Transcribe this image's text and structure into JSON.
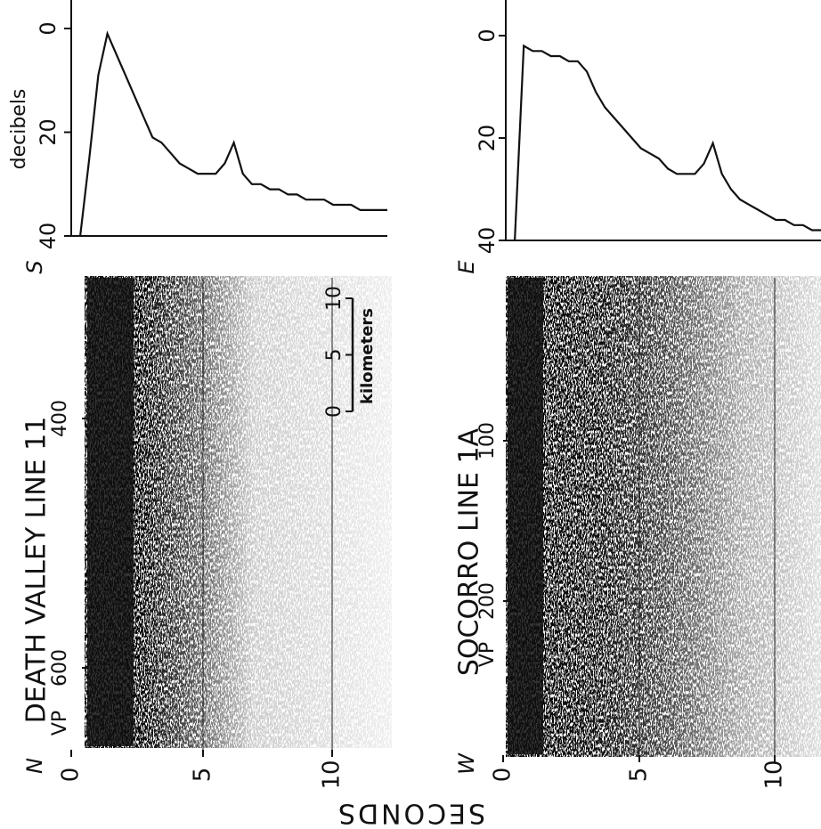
{
  "panels": [
    {
      "title": "DEATH VALLEY LINE 11",
      "vp_prefix": "VP",
      "vp_ticks": [
        "400",
        "600"
      ],
      "ends": [
        "N",
        "S"
      ],
      "time_ticks": [
        0,
        5,
        10
      ],
      "spectrum": {
        "axis_label": "decibels",
        "ticks": [
          0,
          20,
          40
        ],
        "values": [
          null,
          40,
          25,
          9,
          1,
          5,
          9,
          13,
          17,
          21,
          22,
          24,
          26,
          27,
          28,
          28,
          28,
          26,
          22,
          28,
          30,
          30,
          31,
          31,
          32,
          32,
          33,
          33,
          33,
          34,
          34,
          34,
          35,
          35,
          35,
          35
        ]
      },
      "scale": {
        "ticks": [
          0,
          5,
          10
        ],
        "label": "kilometers"
      }
    },
    {
      "title": "SOCORRO LINE 1A",
      "vp_prefix": "VP",
      "vp_ticks": [
        "100",
        "200"
      ],
      "ends": [
        "W",
        "E"
      ],
      "time_ticks": [
        0,
        5,
        10
      ],
      "spectrum": {
        "ticks": [
          0,
          20,
          40
        ],
        "values": [
          null,
          40,
          2,
          3,
          3,
          4,
          4,
          5,
          5,
          7,
          11,
          14,
          16,
          18,
          20,
          22,
          23,
          24,
          26,
          27,
          27,
          27,
          25,
          21,
          27,
          30,
          32,
          33,
          34,
          35,
          36,
          36,
          37,
          37,
          38,
          38
        ]
      }
    }
  ],
  "axis_label": "SECONDS"
}
